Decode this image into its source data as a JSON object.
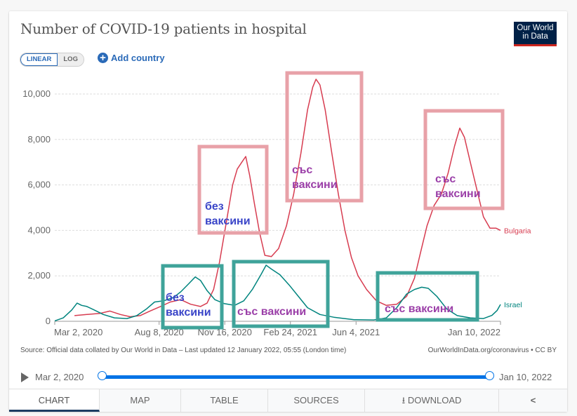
{
  "header": {
    "title": "Number of COVID-19 patients in hospital",
    "logo_line1": "Our World",
    "logo_line2": "in Data",
    "scale_options": [
      "LINEAR",
      "LOG"
    ],
    "scale_selected": "LINEAR",
    "add_country_label": "Add country"
  },
  "footer": {
    "source": "Source: Official data collated by Our World in Data – Last updated 12 January 2022, 05:55 (London time)",
    "license": "OurWorldInData.org/coronavirus • CC BY"
  },
  "timeline": {
    "start_label": "Mar 2, 2020",
    "end_label": "Jan 10, 2022",
    "start_fraction": 0,
    "end_fraction": 1
  },
  "tabs": [
    {
      "label": "CHART",
      "active": true
    },
    {
      "label": "MAP",
      "active": false
    },
    {
      "label": "TABLE",
      "active": false
    },
    {
      "label": "SOURCES",
      "active": false
    },
    {
      "label": "DOWNLOAD",
      "active": false
    },
    {
      "label": "",
      "icon": "share-icon",
      "active": false
    }
  ],
  "colors": {
    "bulgaria": "#d73c50",
    "israel": "#00847e",
    "box_pink": "#e8a1a8",
    "box_teal": "#3fa39a",
    "text_blue": "#3a45c8",
    "text_purple": "#9b3fa8"
  },
  "chart_data": {
    "type": "line",
    "title": "Number of COVID-19 patients in hospital",
    "xlabel": "",
    "ylabel": "",
    "x_range": [
      "2020-03-02",
      "2022-01-10"
    ],
    "ylim": [
      0,
      10000
    ],
    "yticks": [
      0,
      2000,
      4000,
      6000,
      8000,
      10000
    ],
    "ytick_labels": [
      "0",
      "2,000",
      "4,000",
      "6,000",
      "8,000",
      "10,000"
    ],
    "xticks": [
      "2020-03-02",
      "2020-08-08",
      "2020-11-16",
      "2021-02-24",
      "2021-06-04",
      "2022-01-10"
    ],
    "xtick_labels": [
      "Mar 2, 2020",
      "Aug 8, 2020",
      "Nov 16, 2020",
      "Feb 24, 2021",
      "Jun 4, 2021",
      "Jan 10, 2022"
    ],
    "grid": true,
    "series": [
      {
        "name": "Bulgaria",
        "points": [
          [
            "2020-04-01",
            250
          ],
          [
            "2020-04-20",
            300
          ],
          [
            "2020-05-10",
            350
          ],
          [
            "2020-05-25",
            450
          ],
          [
            "2020-06-10",
            300
          ],
          [
            "2020-06-25",
            200
          ],
          [
            "2020-07-10",
            250
          ],
          [
            "2020-07-25",
            450
          ],
          [
            "2020-08-10",
            650
          ],
          [
            "2020-08-25",
            850
          ],
          [
            "2020-09-10",
            950
          ],
          [
            "2020-09-25",
            750
          ],
          [
            "2020-10-10",
            650
          ],
          [
            "2020-10-20",
            800
          ],
          [
            "2020-10-30",
            1400
          ],
          [
            "2020-11-08",
            2600
          ],
          [
            "2020-11-18",
            4300
          ],
          [
            "2020-11-28",
            6000
          ],
          [
            "2020-12-05",
            6700
          ],
          [
            "2020-12-12",
            7000
          ],
          [
            "2020-12-18",
            7250
          ],
          [
            "2020-12-24",
            6400
          ],
          [
            "2020-12-31",
            5200
          ],
          [
            "2021-01-08",
            3900
          ],
          [
            "2021-01-16",
            2900
          ],
          [
            "2021-01-26",
            2850
          ],
          [
            "2021-02-06",
            3200
          ],
          [
            "2021-02-18",
            4200
          ],
          [
            "2021-03-01",
            5600
          ],
          [
            "2021-03-12",
            7400
          ],
          [
            "2021-03-22",
            9300
          ],
          [
            "2021-03-30",
            10300
          ],
          [
            "2021-04-04",
            10650
          ],
          [
            "2021-04-10",
            10400
          ],
          [
            "2021-04-18",
            9300
          ],
          [
            "2021-04-28",
            7400
          ],
          [
            "2021-05-08",
            5600
          ],
          [
            "2021-05-18",
            4000
          ],
          [
            "2021-05-28",
            2800
          ],
          [
            "2021-06-07",
            2000
          ],
          [
            "2021-06-20",
            1400
          ],
          [
            "2021-07-05",
            900
          ],
          [
            "2021-07-20",
            700
          ],
          [
            "2021-08-05",
            750
          ],
          [
            "2021-08-20",
            1100
          ],
          [
            "2021-09-01",
            1900
          ],
          [
            "2021-09-10",
            3000
          ],
          [
            "2021-09-20",
            4200
          ],
          [
            "2021-10-01",
            5100
          ],
          [
            "2021-10-12",
            5600
          ],
          [
            "2021-10-22",
            6500
          ],
          [
            "2021-11-01",
            7700
          ],
          [
            "2021-11-09",
            8500
          ],
          [
            "2021-11-16",
            8100
          ],
          [
            "2021-11-25",
            7000
          ],
          [
            "2021-12-05",
            5800
          ],
          [
            "2021-12-15",
            4600
          ],
          [
            "2021-12-25",
            4100
          ],
          [
            "2022-01-03",
            4100
          ],
          [
            "2022-01-10",
            4000
          ]
        ]
      },
      {
        "name": "Israel",
        "points": [
          [
            "2020-03-02",
            20
          ],
          [
            "2020-03-15",
            150
          ],
          [
            "2020-03-28",
            500
          ],
          [
            "2020-04-05",
            800
          ],
          [
            "2020-04-12",
            700
          ],
          [
            "2020-04-20",
            650
          ],
          [
            "2020-05-01",
            500
          ],
          [
            "2020-05-15",
            300
          ],
          [
            "2020-06-01",
            150
          ],
          [
            "2020-06-20",
            120
          ],
          [
            "2020-07-05",
            250
          ],
          [
            "2020-07-20",
            550
          ],
          [
            "2020-08-01",
            850
          ],
          [
            "2020-08-15",
            900
          ],
          [
            "2020-08-30",
            1050
          ],
          [
            "2020-09-10",
            1300
          ],
          [
            "2020-09-22",
            1650
          ],
          [
            "2020-10-02",
            1950
          ],
          [
            "2020-10-10",
            1800
          ],
          [
            "2020-10-20",
            1350
          ],
          [
            "2020-11-01",
            950
          ],
          [
            "2020-11-15",
            780
          ],
          [
            "2020-12-01",
            700
          ],
          [
            "2020-12-15",
            900
          ],
          [
            "2020-12-28",
            1400
          ],
          [
            "2021-01-10",
            2050
          ],
          [
            "2021-01-18",
            2470
          ],
          [
            "2021-01-26",
            2300
          ],
          [
            "2021-02-08",
            2050
          ],
          [
            "2021-02-22",
            1600
          ],
          [
            "2021-03-08",
            1100
          ],
          [
            "2021-03-22",
            600
          ],
          [
            "2021-04-10",
            300
          ],
          [
            "2021-05-01",
            180
          ],
          [
            "2021-06-01",
            70
          ],
          [
            "2021-07-01",
            60
          ],
          [
            "2021-07-20",
            150
          ],
          [
            "2021-08-05",
            600
          ],
          [
            "2021-08-20",
            1200
          ],
          [
            "2021-09-01",
            1400
          ],
          [
            "2021-09-12",
            1500
          ],
          [
            "2021-09-22",
            1450
          ],
          [
            "2021-10-05",
            1100
          ],
          [
            "2021-10-20",
            550
          ],
          [
            "2021-11-05",
            250
          ],
          [
            "2021-11-25",
            150
          ],
          [
            "2021-12-15",
            120
          ],
          [
            "2021-12-28",
            260
          ],
          [
            "2022-01-05",
            480
          ],
          [
            "2022-01-10",
            740
          ]
        ]
      }
    ],
    "legend": "line-end labels (right)",
    "annotations": [
      {
        "text": "без\nваксини",
        "series": "Bulgaria",
        "period": "Oct–Dec 2020",
        "box_color": "pink",
        "text_color": "blue"
      },
      {
        "text": "със\nваксини",
        "series": "Bulgaria",
        "period": "Feb–May 2021",
        "box_color": "pink",
        "text_color": "purple"
      },
      {
        "text": "със\nваксини",
        "series": "Bulgaria",
        "period": "Oct–Dec 2021",
        "box_color": "pink",
        "text_color": "purple"
      },
      {
        "text": "без\nваксини",
        "series": "Israel",
        "period": "Aug–Nov 2020",
        "box_color": "teal",
        "text_color": "blue"
      },
      {
        "text": "със ваксини",
        "series": "Israel",
        "period": "Dec 2020–Apr 2021",
        "box_color": "teal",
        "text_color": "purple"
      },
      {
        "text": "със ваксини",
        "series": "Israel",
        "period": "Jul–Nov 2021",
        "box_color": "teal",
        "text_color": "purple"
      }
    ]
  }
}
